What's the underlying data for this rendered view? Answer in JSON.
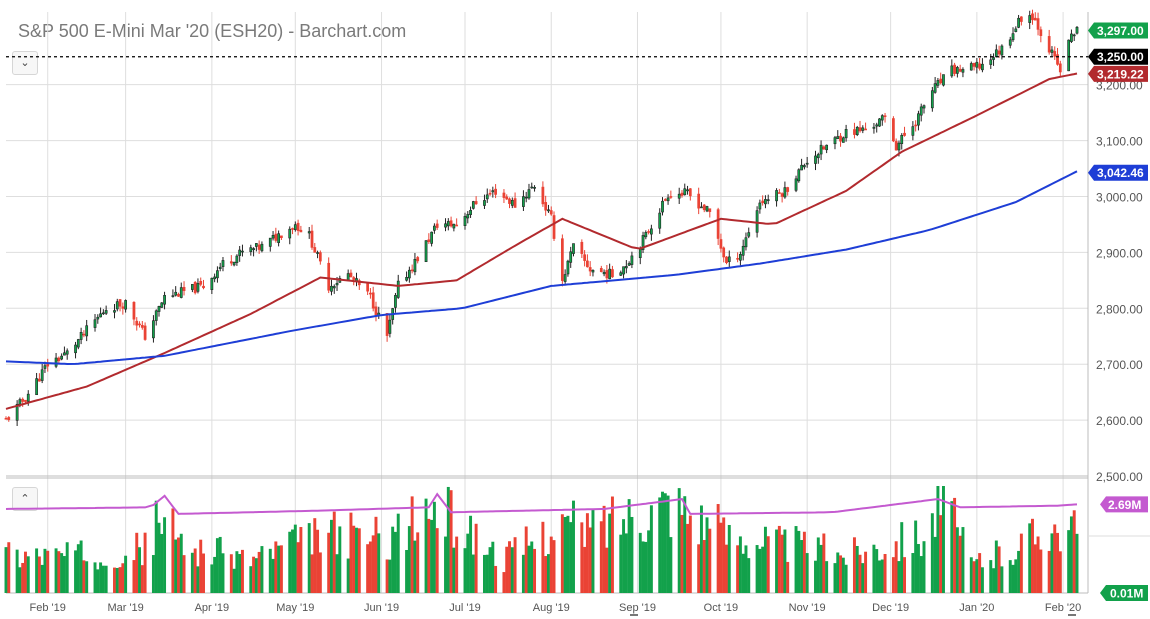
{
  "title": "S&P 500 E-Mini Mar '20 (ESH20) - Barchart.com",
  "controls": {
    "collapse_main_icon": "chevron-down-icon",
    "collapse_volume_icon": "chevron-up-icon"
  },
  "colors": {
    "up": "#12a14b",
    "down": "#ea4335",
    "ma50": "#b22a2e",
    "ma200": "#1e3ed6",
    "volume_avg": "#c45ad0",
    "grid": "#dedede",
    "last_price_badge": "#000000"
  },
  "chart_data": [
    {
      "type": "candlestick",
      "title": "S&P 500 E-Mini Mar '20 (ESH20) - Barchart.com",
      "x_start": "2019-01-17",
      "x_end": "2020-02-06",
      "x_tick_labels": [
        "Feb '19",
        "Mar '19",
        "Apr '19",
        "May '19",
        "Jun '19",
        "Jul '19",
        "Aug '19",
        "Sep '19",
        "Oct '19",
        "Nov '19",
        "Dec '19",
        "Jan '20",
        "Feb '20"
      ],
      "y_tick_labels": [
        "2,500.00",
        "2,600.00",
        "2,700.00",
        "2,800.00",
        "2,900.00",
        "3,000.00",
        "3,100.00",
        "3,200.00"
      ],
      "ylim": [
        2500,
        3330
      ],
      "grid": true,
      "last_price": 3250.0,
      "last_price_label": "3,250.00",
      "price_labels": [
        {
          "label": "3,297.00",
          "value": 3297.0,
          "color": "#12a14b"
        },
        {
          "label": "3,250.00",
          "value": 3250.0,
          "color": "#000000"
        },
        {
          "label": "3,219.22",
          "value": 3219.22,
          "color": "#b22a2e"
        },
        {
          "label": "3,042.46",
          "value": 3042.46,
          "color": "#1e3ed6"
        }
      ],
      "price_path_anchors": [
        [
          "2019-01-17",
          2600
        ],
        [
          "2019-01-24",
          2640
        ],
        [
          "2019-02-01",
          2700
        ],
        [
          "2019-02-08",
          2720
        ],
        [
          "2019-02-15",
          2760
        ],
        [
          "2019-02-22",
          2800
        ],
        [
          "2019-03-01",
          2810
        ],
        [
          "2019-03-08",
          2750
        ],
        [
          "2019-03-15",
          2820
        ],
        [
          "2019-03-22",
          2830
        ],
        [
          "2019-03-29",
          2840
        ],
        [
          "2019-04-05",
          2880
        ],
        [
          "2019-04-12",
          2900
        ],
        [
          "2019-04-19",
          2910
        ],
        [
          "2019-04-26",
          2935
        ],
        [
          "2019-05-01",
          2950
        ],
        [
          "2019-05-06",
          2930
        ],
        [
          "2019-05-13",
          2840
        ],
        [
          "2019-05-20",
          2860
        ],
        [
          "2019-05-28",
          2820
        ],
        [
          "2019-06-03",
          2750
        ],
        [
          "2019-06-07",
          2840
        ],
        [
          "2019-06-14",
          2890
        ],
        [
          "2019-06-21",
          2950
        ],
        [
          "2019-06-28",
          2950
        ],
        [
          "2019-07-05",
          2990
        ],
        [
          "2019-07-12",
          3010
        ],
        [
          "2019-07-19",
          2985
        ],
        [
          "2019-07-26",
          3020
        ],
        [
          "2019-08-01",
          2960
        ],
        [
          "2019-08-05",
          2850
        ],
        [
          "2019-08-09",
          2910
        ],
        [
          "2019-08-15",
          2870
        ],
        [
          "2019-08-23",
          2860
        ],
        [
          "2019-08-28",
          2880
        ],
        [
          "2019-09-04",
          2930
        ],
        [
          "2019-09-12",
          3005
        ],
        [
          "2019-09-19",
          3005
        ],
        [
          "2019-09-27",
          2970
        ],
        [
          "2019-10-03",
          2880
        ],
        [
          "2019-10-08",
          2900
        ],
        [
          "2019-10-15",
          2990
        ],
        [
          "2019-10-24",
          3010
        ],
        [
          "2019-11-01",
          3065
        ],
        [
          "2019-11-08",
          3090
        ],
        [
          "2019-11-15",
          3115
        ],
        [
          "2019-11-22",
          3120
        ],
        [
          "2019-11-29",
          3140
        ],
        [
          "2019-12-03",
          3090
        ],
        [
          "2019-12-10",
          3135
        ],
        [
          "2019-12-16",
          3190
        ],
        [
          "2019-12-23",
          3225
        ],
        [
          "2019-12-31",
          3230
        ],
        [
          "2020-01-03",
          3235
        ],
        [
          "2020-01-10",
          3265
        ],
        [
          "2020-01-17",
          3320
        ],
        [
          "2020-01-21",
          3325
        ],
        [
          "2020-01-24",
          3295
        ],
        [
          "2020-01-31",
          3225
        ],
        [
          "2020-02-04",
          3290
        ],
        [
          "2020-02-06",
          3297
        ]
      ],
      "series": [
        {
          "name": "50-day MA",
          "anchors": [
            [
              "2019-01-17",
              2620
            ],
            [
              "2019-02-15",
              2660
            ],
            [
              "2019-03-15",
              2720
            ],
            [
              "2019-04-15",
              2790
            ],
            [
              "2019-05-10",
              2855
            ],
            [
              "2019-06-07",
              2840
            ],
            [
              "2019-06-28",
              2850
            ],
            [
              "2019-07-20",
              2915
            ],
            [
              "2019-08-05",
              2960
            ],
            [
              "2019-09-01",
              2905
            ],
            [
              "2019-10-01",
              2960
            ],
            [
              "2019-10-20",
              2950
            ],
            [
              "2019-11-15",
              3010
            ],
            [
              "2019-12-05",
              3080
            ],
            [
              "2020-01-01",
              3145
            ],
            [
              "2020-01-27",
              3210
            ],
            [
              "2020-02-06",
              3220
            ]
          ]
        },
        {
          "name": "200-day MA",
          "anchors": [
            [
              "2019-01-17",
              2705
            ],
            [
              "2019-02-10",
              2700
            ],
            [
              "2019-03-15",
              2715
            ],
            [
              "2019-04-30",
              2760
            ],
            [
              "2019-06-01",
              2788
            ],
            [
              "2019-06-30",
              2800
            ],
            [
              "2019-08-01",
              2840
            ],
            [
              "2019-09-15",
              2860
            ],
            [
              "2019-10-15",
              2880
            ],
            [
              "2019-11-15",
              2905
            ],
            [
              "2019-12-15",
              2940
            ],
            [
              "2020-01-15",
              2990
            ],
            [
              "2020-02-06",
              3045
            ]
          ]
        }
      ]
    },
    {
      "type": "bar",
      "name": "volume",
      "ylim_labels": [
        "0.01M",
        "2.69M"
      ],
      "average_label": "2.69M",
      "volume_level_anchors": [
        [
          "2019-01-17",
          0.4
        ],
        [
          "2019-02-15",
          0.38
        ],
        [
          "2019-03-08",
          0.45
        ],
        [
          "2019-03-15",
          0.85
        ],
        [
          "2019-03-20",
          0.48
        ],
        [
          "2019-04-15",
          0.35
        ],
        [
          "2019-05-06",
          0.55
        ],
        [
          "2019-05-14",
          0.6
        ],
        [
          "2019-06-03",
          0.55
        ],
        [
          "2019-06-21",
          0.85
        ],
        [
          "2019-07-15",
          0.35
        ],
        [
          "2019-08-05",
          0.7
        ],
        [
          "2019-08-14",
          0.65
        ],
        [
          "2019-09-13",
          0.95
        ],
        [
          "2019-10-03",
          0.6
        ],
        [
          "2019-11-15",
          0.4
        ],
        [
          "2019-12-13",
          0.6
        ],
        [
          "2019-12-20",
          0.95
        ],
        [
          "2019-12-30",
          0.3
        ],
        [
          "2020-01-15",
          0.45
        ],
        [
          "2020-01-27",
          0.7
        ],
        [
          "2020-02-06",
          0.6
        ]
      ],
      "average_anchors": [
        [
          "2019-01-17",
          2.55
        ],
        [
          "2019-03-10",
          2.6
        ],
        [
          "2019-03-15",
          2.95
        ],
        [
          "2019-03-20",
          2.4
        ],
        [
          "2019-05-10",
          2.5
        ],
        [
          "2019-06-18",
          2.6
        ],
        [
          "2019-06-21",
          3.0
        ],
        [
          "2019-06-26",
          2.45
        ],
        [
          "2019-08-20",
          2.55
        ],
        [
          "2019-09-17",
          2.85
        ],
        [
          "2019-09-20",
          2.4
        ],
        [
          "2019-11-10",
          2.45
        ],
        [
          "2019-12-18",
          2.85
        ],
        [
          "2019-12-26",
          2.6
        ],
        [
          "2020-01-30",
          2.65
        ],
        [
          "2020-02-06",
          2.69
        ]
      ]
    }
  ]
}
